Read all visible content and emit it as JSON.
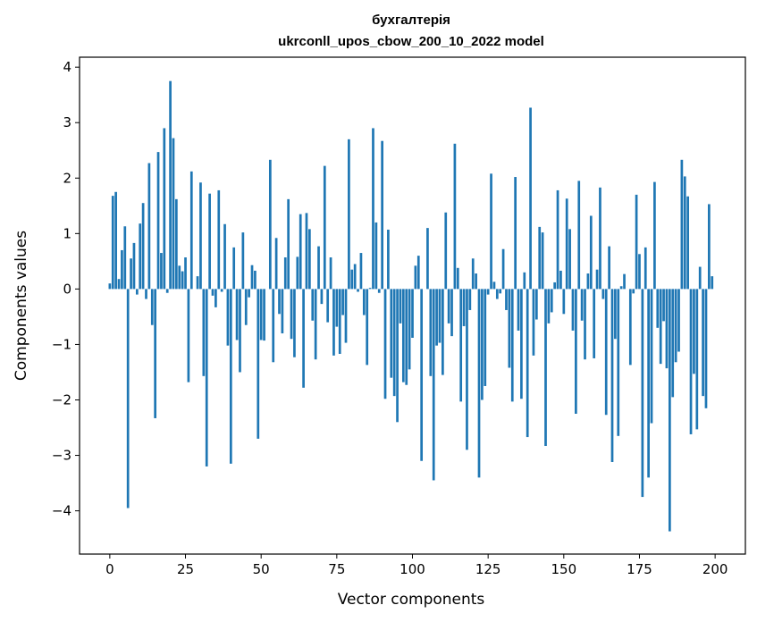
{
  "chart_data": {
    "type": "bar",
    "title": "бухгалтерія",
    "subtitle": "ukrconll_upos_cbow_200_10_2022 model",
    "xlabel": "Vector components",
    "ylabel": "Components values",
    "xlim": [
      -10,
      210
    ],
    "ylim": [
      -4.78,
      4.18
    ],
    "xticks": [
      0,
      25,
      50,
      75,
      100,
      125,
      150,
      175,
      200
    ],
    "yticks": [
      -4,
      -3,
      -2,
      -1,
      0,
      1,
      2,
      3,
      4
    ],
    "grid": false,
    "bar_color": "#1f77b4",
    "x": [
      0,
      1,
      2,
      3,
      4,
      5,
      6,
      7,
      8,
      9,
      10,
      11,
      12,
      13,
      14,
      15,
      16,
      17,
      18,
      19,
      20,
      21,
      22,
      23,
      24,
      25,
      26,
      27,
      28,
      29,
      30,
      31,
      32,
      33,
      34,
      35,
      36,
      37,
      38,
      39,
      40,
      41,
      42,
      43,
      44,
      45,
      46,
      47,
      48,
      49,
      50,
      51,
      52,
      53,
      54,
      55,
      56,
      57,
      58,
      59,
      60,
      61,
      62,
      63,
      64,
      65,
      66,
      67,
      68,
      69,
      70,
      71,
      72,
      73,
      74,
      75,
      76,
      77,
      78,
      79,
      80,
      81,
      82,
      83,
      84,
      85,
      86,
      87,
      88,
      89,
      90,
      91,
      92,
      93,
      94,
      95,
      96,
      97,
      98,
      99,
      100,
      101,
      102,
      103,
      104,
      105,
      106,
      107,
      108,
      109,
      110,
      111,
      112,
      113,
      114,
      115,
      116,
      117,
      118,
      119,
      120,
      121,
      122,
      123,
      124,
      125,
      126,
      127,
      128,
      129,
      130,
      131,
      132,
      133,
      134,
      135,
      136,
      137,
      138,
      139,
      140,
      141,
      142,
      143,
      144,
      145,
      146,
      147,
      148,
      149,
      150,
      151,
      152,
      153,
      154,
      155,
      156,
      157,
      158,
      159,
      160,
      161,
      162,
      163,
      164,
      165,
      166,
      167,
      168,
      169,
      170,
      171,
      172,
      173,
      174,
      175,
      176,
      177,
      178,
      179,
      180,
      181,
      182,
      183,
      184,
      185,
      186,
      187,
      188,
      189,
      190,
      191,
      192,
      193,
      194,
      195,
      196,
      197,
      198,
      199
    ],
    "values": [
      0.1,
      1.68,
      1.75,
      0.18,
      0.7,
      1.13,
      -3.95,
      0.55,
      0.83,
      -0.1,
      1.18,
      1.55,
      -0.18,
      2.27,
      -0.65,
      -2.33,
      2.47,
      0.65,
      2.9,
      -0.07,
      3.75,
      2.72,
      1.62,
      0.42,
      0.32,
      0.57,
      -1.68,
      2.12,
      0.0,
      0.23,
      1.92,
      -1.57,
      -3.2,
      1.72,
      -0.12,
      -0.33,
      1.78,
      -0.05,
      1.17,
      -1.02,
      -3.15,
      0.75,
      -0.92,
      -1.5,
      1.02,
      -0.65,
      -0.15,
      0.43,
      0.33,
      -2.7,
      -0.92,
      -0.93,
      0.0,
      2.33,
      -1.32,
      0.92,
      -0.45,
      -0.8,
      0.57,
      1.62,
      -0.9,
      -1.23,
      0.58,
      1.35,
      -1.78,
      1.37,
      1.08,
      -0.57,
      -1.27,
      0.77,
      -0.27,
      2.22,
      -0.6,
      0.57,
      -1.2,
      -0.68,
      -1.17,
      -0.47,
      -0.97,
      2.7,
      0.35,
      0.45,
      -0.05,
      0.65,
      -0.47,
      -1.37,
      0.02,
      2.9,
      1.2,
      -0.07,
      2.67,
      -1.98,
      1.07,
      -1.6,
      -1.93,
      -2.4,
      -0.62,
      -1.68,
      -1.73,
      -1.45,
      -0.88,
      0.42,
      0.6,
      -3.1,
      0.0,
      1.1,
      -1.57,
      -3.45,
      -1.02,
      -0.97,
      -1.55,
      1.38,
      -0.62,
      -0.85,
      2.62,
      0.38,
      -2.03,
      -0.67,
      -2.9,
      -0.38,
      0.55,
      0.28,
      -3.4,
      -2.0,
      -1.75,
      -0.1,
      2.08,
      0.13,
      -0.18,
      -0.08,
      0.72,
      -0.38,
      -1.42,
      -2.03,
      2.02,
      -0.75,
      -1.98,
      0.3,
      -2.67,
      3.27,
      -1.2,
      -0.55,
      1.12,
      1.02,
      -2.83,
      -0.62,
      -0.42,
      0.12,
      1.78,
      0.33,
      -0.45,
      1.63,
      1.08,
      -0.75,
      -2.25,
      1.95,
      -0.57,
      -1.27,
      0.28,
      1.32,
      -1.25,
      0.35,
      1.83,
      -0.18,
      -2.27,
      0.77,
      -3.12,
      -0.9,
      -2.65,
      0.05,
      0.27,
      0.0,
      -1.37,
      -0.08,
      1.7,
      0.63,
      -3.75,
      0.75,
      -3.4,
      -2.42,
      1.93,
      -0.7,
      -1.35,
      -0.58,
      -1.43,
      -4.37,
      -1.95,
      -1.32,
      -1.13,
      2.33,
      2.03,
      1.67,
      -2.62,
      -1.53,
      -2.53,
      0.4,
      -1.93,
      -2.15,
      1.53,
      0.23
    ]
  }
}
